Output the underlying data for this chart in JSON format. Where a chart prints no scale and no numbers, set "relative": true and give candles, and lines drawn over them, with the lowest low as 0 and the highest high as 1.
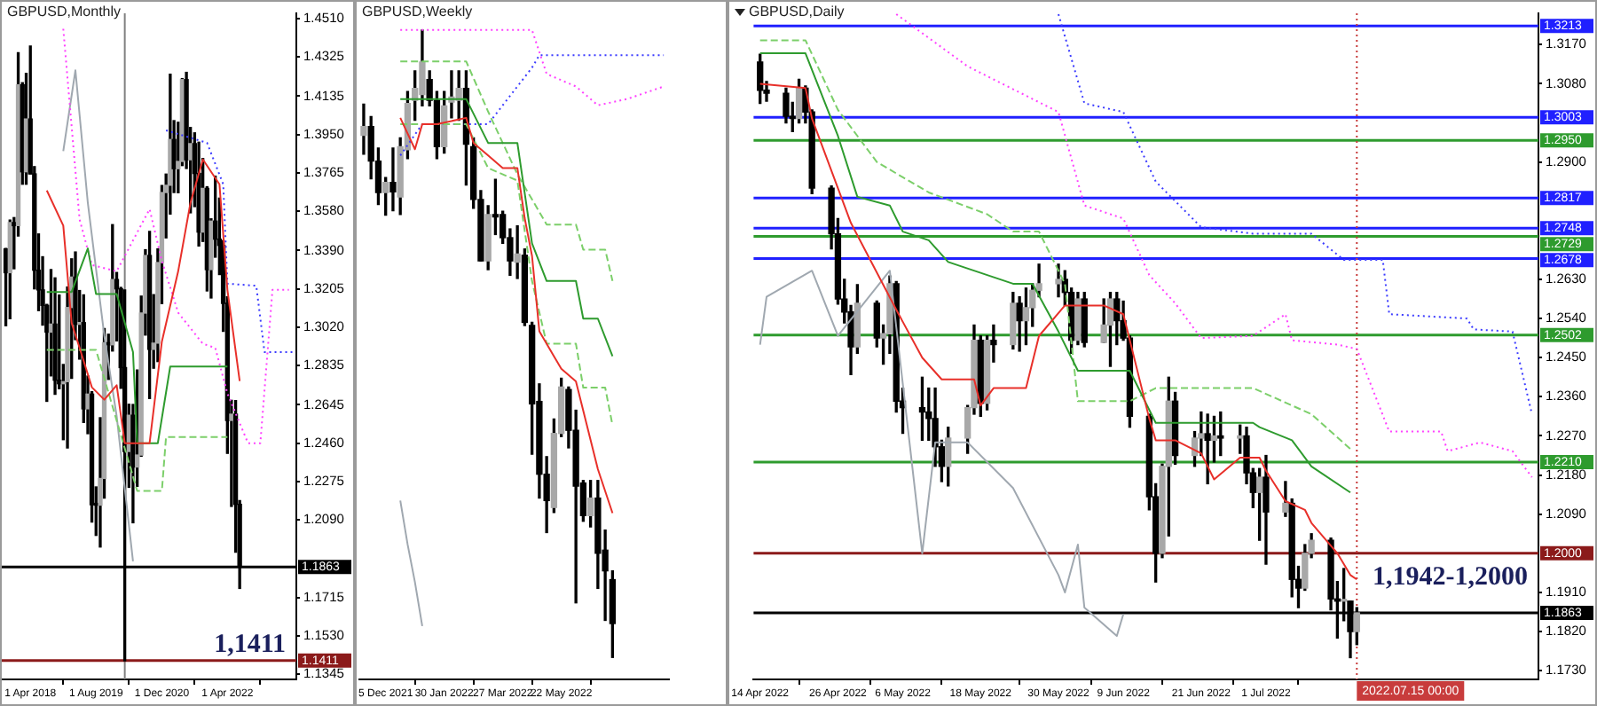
{
  "chart_data": [
    {
      "type": "candlestick",
      "title": "GBPUSD,Monthly",
      "x": [
        "2017-10",
        "2017-11",
        "2017-12",
        "2018-01",
        "2018-02",
        "2018-03",
        "2018-04",
        "2018-05",
        "2018-06",
        "2018-07",
        "2018-08",
        "2018-09",
        "2018-10",
        "2018-11",
        "2018-12",
        "2019-01",
        "2019-02",
        "2019-03",
        "2019-04",
        "2019-05",
        "2019-06",
        "2019-07",
        "2019-08",
        "2019-09",
        "2019-10",
        "2019-11",
        "2019-12",
        "2020-01",
        "2020-02",
        "2020-03",
        "2020-04",
        "2020-05",
        "2020-06",
        "2020-07",
        "2020-08",
        "2020-09",
        "2020-10",
        "2020-11",
        "2020-12",
        "2021-01",
        "2021-02",
        "2021-03",
        "2021-04",
        "2021-05",
        "2021-06",
        "2021-07",
        "2021-08",
        "2021-09",
        "2021-10",
        "2021-11",
        "2021-12",
        "2022-01",
        "2022-02",
        "2022-03",
        "2022-04",
        "2022-05",
        "2022-06",
        "2022-07"
      ],
      "ohlc": [
        [
          1.3398,
          1.34,
          1.3027,
          1.3283
        ],
        [
          1.3283,
          1.3537,
          1.3061,
          1.3525
        ],
        [
          1.3525,
          1.3549,
          1.3302,
          1.351
        ],
        [
          1.351,
          1.4345,
          1.346,
          1.419
        ],
        [
          1.419,
          1.42,
          1.371,
          1.377
        ],
        [
          1.377,
          1.4245,
          1.371,
          1.4025
        ],
        [
          1.4025,
          1.4377,
          1.376,
          1.376
        ],
        [
          1.376,
          1.3795,
          1.3205,
          1.3295
        ],
        [
          1.3295,
          1.347,
          1.31,
          1.32
        ],
        [
          1.32,
          1.336,
          1.303,
          1.3125
        ],
        [
          1.3125,
          1.313,
          1.2662,
          1.2996
        ],
        [
          1.2996,
          1.3298,
          1.2785,
          1.3035
        ],
        [
          1.3035,
          1.3258,
          1.2696,
          1.2764
        ],
        [
          1.2764,
          1.3175,
          1.2723,
          1.2747
        ],
        [
          1.2747,
          1.284,
          1.2477,
          1.2757
        ],
        [
          1.2757,
          1.3214,
          1.2437,
          1.3115
        ],
        [
          1.3115,
          1.335,
          1.2773,
          1.3262
        ],
        [
          1.3262,
          1.3383,
          1.296,
          1.3034
        ],
        [
          1.3034,
          1.3197,
          1.2866,
          1.3042
        ],
        [
          1.3042,
          1.3176,
          1.256,
          1.2626
        ],
        [
          1.2626,
          1.2784,
          1.2506,
          1.2697
        ],
        [
          1.2697,
          1.2708,
          1.208,
          1.2163
        ],
        [
          1.2163,
          1.2249,
          1.2015,
          1.2161
        ],
        [
          1.2161,
          1.2583,
          1.1959,
          1.229
        ],
        [
          1.229,
          1.3013,
          1.2195,
          1.2945
        ],
        [
          1.2945,
          1.2986,
          1.2768,
          1.2935
        ],
        [
          1.2935,
          1.3515,
          1.2905,
          1.325
        ],
        [
          1.325,
          1.3284,
          1.2954,
          1.3205
        ],
        [
          1.3205,
          1.3212,
          1.2725,
          1.2825
        ],
        [
          1.2825,
          1.32,
          1.1409,
          1.242
        ],
        [
          1.242,
          1.2648,
          1.2247,
          1.2595
        ],
        [
          1.2595,
          1.2647,
          1.2076,
          1.2345
        ],
        [
          1.2345,
          1.2813,
          1.2252,
          1.2403
        ],
        [
          1.2403,
          1.317,
          1.2397,
          1.3088
        ],
        [
          1.3088,
          1.3394,
          1.2982,
          1.3366
        ],
        [
          1.3366,
          1.3482,
          1.2676,
          1.2913
        ],
        [
          1.2913,
          1.3177,
          1.2822,
          1.2943
        ],
        [
          1.2943,
          1.3398,
          1.2854,
          1.3332
        ],
        [
          1.3332,
          1.3704,
          1.3134,
          1.367
        ],
        [
          1.367,
          1.3759,
          1.3451,
          1.3705
        ],
        [
          1.3705,
          1.4241,
          1.3566,
          1.3926
        ],
        [
          1.3926,
          1.4017,
          1.367,
          1.3785
        ],
        [
          1.3785,
          1.4009,
          1.3669,
          1.382
        ],
        [
          1.382,
          1.422,
          1.38,
          1.4215
        ],
        [
          1.4215,
          1.425,
          1.3786,
          1.3828
        ],
        [
          1.3828,
          1.3984,
          1.3572,
          1.3906
        ],
        [
          1.3906,
          1.3958,
          1.3602,
          1.3762
        ],
        [
          1.3762,
          1.3913,
          1.3412,
          1.3479
        ],
        [
          1.3479,
          1.3834,
          1.3434,
          1.369
        ],
        [
          1.369,
          1.3698,
          1.3195,
          1.3298
        ],
        [
          1.3298,
          1.3543,
          1.3161,
          1.3532
        ],
        [
          1.3532,
          1.3749,
          1.3358,
          1.3445
        ],
        [
          1.3445,
          1.3643,
          1.3274,
          1.3415
        ],
        [
          1.3415,
          1.3438,
          1.3,
          1.3135
        ],
        [
          1.3135,
          1.3167,
          1.2411,
          1.257
        ],
        [
          1.257,
          1.2667,
          1.2155,
          1.26
        ],
        [
          1.26,
          1.2666,
          1.1934,
          1.2165
        ],
        [
          1.2165,
          1.2183,
          1.1759,
          1.1863
        ]
      ],
      "series": [
        {
          "type": "line",
          "color": "#e8302a",
          "line_style": "solid",
          "x": [
            "2018-08",
            "2018-12",
            "2019-02",
            "2019-04",
            "2019-07",
            "2019-10",
            "2020-01",
            "2020-03",
            "2020-09",
            "2020-12",
            "2021-04",
            "2021-07",
            "2021-10",
            "2022-02",
            "2022-04",
            "2022-07"
          ],
          "values": [
            1.368,
            1.351,
            1.304,
            1.292,
            1.273,
            1.267,
            1.274,
            1.246,
            1.246,
            1.295,
            1.329,
            1.362,
            1.383,
            1.371,
            1.32,
            1.276
          ]
        },
        {
          "type": "line",
          "color": "#2e9b2e",
          "line_style": "solid",
          "x": [
            "2018-08",
            "2019-02",
            "2019-06",
            "2019-08",
            "2020-01",
            "2020-05",
            "2020-06",
            "2020-11",
            "2021-02",
            "2022-04"
          ],
          "values": [
            1.319,
            1.319,
            1.34,
            1.318,
            1.318,
            1.29,
            1.246,
            1.246,
            1.283,
            1.283
          ]
        },
        {
          "type": "line",
          "color": "#7ccf6a",
          "line_style": "dashed",
          "x": [
            "2018-08",
            "2019-08",
            "2020-06",
            "2020-12",
            "2021-01",
            "2022-04"
          ],
          "values": [
            1.291,
            1.291,
            1.223,
            1.223,
            1.249,
            1.249
          ]
        },
        {
          "type": "line",
          "color": "#3b3bff",
          "line_style": "dotted",
          "x": [
            "2021-01",
            "2021-11",
            "2022-03",
            "2022-04",
            "2022-11",
            "2023-01",
            "2023-08"
          ],
          "values": [
            1.397,
            1.391,
            1.371,
            1.323,
            1.322,
            1.29,
            1.29
          ]
        },
        {
          "type": "line",
          "color": "#ff40ff",
          "line_style": "dotted",
          "x": [
            "2018-12",
            "2019-04",
            "2019-07",
            "2020-01",
            "2020-09",
            "2020-12",
            "2021-04",
            "2021-10",
            "2022-01",
            "2022-04",
            "2022-09",
            "2022-12",
            "2023-03",
            "2023-07"
          ],
          "values": [
            1.446,
            1.354,
            1.332,
            1.329,
            1.359,
            1.334,
            1.309,
            1.294,
            1.292,
            1.27,
            1.246,
            1.246,
            1.32,
            1.32
          ]
        },
        {
          "type": "line",
          "color": "#a0a8b0",
          "line_style": "solid",
          "x": [
            "2018-12",
            "2019-03",
            "2019-06",
            "2019-10",
            "2020-01",
            "2020-05"
          ],
          "values": [
            1.387,
            1.426,
            1.362,
            1.298,
            1.259,
            1.189
          ]
        }
      ],
      "xlim": [
        "2017-09-01",
        "2023-08-25"
      ],
      "xticks": [
        {
          "value": "2018-04-01",
          "label": "1 Apr 2018"
        },
        {
          "value": "2019-08-01",
          "label": "1 Aug 2019"
        },
        {
          "value": "2020-12-01",
          "label": "1 Dec 2020"
        },
        {
          "value": "2022-04-01",
          "label": "1 Apr 2022"
        }
      ],
      "ylim": [
        1.132,
        1.4535
      ],
      "yticks": [
        {
          "value": 1.451,
          "label": "1.4510"
        },
        1.4325,
        1.4135,
        {
          "value": 1.395,
          "label": "1.3950"
        },
        1.3765,
        {
          "value": 1.358,
          "label": "1.3580"
        },
        {
          "value": 1.339,
          "label": "1.3390"
        },
        1.3205,
        {
          "value": 1.302,
          "label": "1.3020"
        },
        1.2835,
        1.2645,
        {
          "value": 1.246,
          "label": "1.2460"
        },
        1.2275,
        {
          "value": 1.209,
          "label": "1.2090"
        },
        1.1715,
        {
          "value": 1.153,
          "label": "1.1530"
        },
        1.1345
      ],
      "ref_lines": [
        {
          "axis": "x",
          "value": "2020-03-01",
          "color": "#808080"
        },
        {
          "axis": "y",
          "value": 1.1411,
          "label": "1.1411",
          "color": "#8b1a1a"
        },
        {
          "axis": "y",
          "value": 1.1863,
          "label": "1.1863",
          "color": "#000000"
        }
      ],
      "annotations": [
        "1,1411"
      ]
    },
    {
      "type": "candlestick",
      "title": "GBPUSD,Weekly",
      "relative": true,
      "tick_labels": "x",
      "x": [
        "2021-11-14",
        "2021-11-21",
        "2021-11-28",
        "2021-12-05",
        "2021-12-12",
        "2021-12-19",
        "2021-12-26",
        "2022-01-02",
        "2022-01-09",
        "2022-01-16",
        "2022-01-23",
        "2022-01-30",
        "2022-02-06",
        "2022-02-13",
        "2022-02-20",
        "2022-02-27",
        "2022-03-06",
        "2022-03-13",
        "2022-03-20",
        "2022-03-27",
        "2022-04-03",
        "2022-04-10",
        "2022-04-17",
        "2022-04-24",
        "2022-05-01",
        "2022-05-08",
        "2022-05-15",
        "2022-05-22",
        "2022-05-29",
        "2022-06-05",
        "2022-06-12",
        "2022-06-19",
        "2022-06-26",
        "2022-07-03",
        "2022-07-10"
      ],
      "ohlc": [
        [
          0.832,
          0.882,
          0.802,
          0.846
        ],
        [
          0.846,
          0.862,
          0.763,
          0.791
        ],
        [
          0.791,
          0.812,
          0.722,
          0.741
        ],
        [
          0.741,
          0.765,
          0.705,
          0.757
        ],
        [
          0.757,
          0.812,
          0.712,
          0.742
        ],
        [
          0.734,
          0.828,
          0.706,
          0.814
        ],
        [
          0.809,
          0.902,
          0.795,
          0.883
        ],
        [
          0.888,
          0.935,
          0.856,
          0.907
        ],
        [
          0.897,
          1,
          0.879,
          0.949
        ],
        [
          0.921,
          0.935,
          0.879,
          0.888
        ],
        [
          0.888,
          0.902,
          0.795,
          0.814
        ],
        [
          0.814,
          0.902,
          0.804,
          0.879
        ],
        [
          0.885,
          0.935,
          0.86,
          0.893
        ],
        [
          0.888,
          0.935,
          0.856,
          0.907
        ],
        [
          0.907,
          0.935,
          0.753,
          0.818
        ],
        [
          0.814,
          0.828,
          0.716,
          0.73
        ],
        [
          0.73,
          0.744,
          0.632,
          0.632
        ],
        [
          0.632,
          0.72,
          0.618,
          0.706
        ],
        [
          0.706,
          0.762,
          0.674,
          0.702
        ],
        [
          0.706,
          0.711,
          0.66,
          0.669
        ],
        [
          0.669,
          0.683,
          0.609,
          0.632
        ],
        [
          0.63,
          0.688,
          0.604,
          0.643
        ],
        [
          0.641,
          0.651,
          0.529,
          0.534
        ],
        [
          0.529,
          0.534,
          0.324,
          0.404
        ],
        [
          0.408,
          0.436,
          0.254,
          0.292
        ],
        [
          0.292,
          0.32,
          0.199,
          0.25
        ],
        [
          0.239,
          0.38,
          0.231,
          0.357
        ],
        [
          0.357,
          0.445,
          0.352,
          0.431
        ],
        [
          0.427,
          0.431,
          0.334,
          0.362
        ],
        [
          0.362,
          0.394,
          0.087,
          0.273
        ],
        [
          0.278,
          0.282,
          0.217,
          0.226
        ],
        [
          0.226,
          0.282,
          0.208,
          0.254
        ],
        [
          0.254,
          0.282,
          0.11,
          0.166
        ],
        [
          0.171,
          0.203,
          0.059,
          0.138
        ],
        [
          0.124,
          0.138,
          0,
          0.054
        ]
      ],
      "series": [
        {
          "type": "line",
          "color": "#e8302a",
          "line_style": "solid",
          "x": [
            "2021-12-19",
            "2022-01-02",
            "2022-01-09",
            "2022-01-23",
            "2022-02-20",
            "2022-02-27",
            "2022-03-13",
            "2022-03-27",
            "2022-04-10",
            "2022-04-17",
            "2022-04-24",
            "2022-05-01",
            "2022-05-15",
            "2022-05-22",
            "2022-06-05",
            "2022-06-26",
            "2022-07-10"
          ],
          "values": [
            0.86,
            0.81,
            0.85,
            0.85,
            0.86,
            0.82,
            0.8,
            0.78,
            0.78,
            0.7,
            0.64,
            0.52,
            0.48,
            0.46,
            0.44,
            0.3,
            0.23
          ]
        },
        {
          "type": "line",
          "color": "#2e9b2e",
          "line_style": "solid",
          "x": [
            "2021-12-19",
            "2022-02-20",
            "2022-03-13",
            "2022-04-10",
            "2022-04-24",
            "2022-05-08",
            "2022-06-05",
            "2022-06-12",
            "2022-06-26",
            "2022-07-10"
          ],
          "values": [
            0.89,
            0.89,
            0.82,
            0.82,
            0.66,
            0.6,
            0.6,
            0.54,
            0.54,
            0.48
          ]
        },
        {
          "type": "line",
          "color": "#7ccf6a",
          "line_style": "dashed",
          "x": [
            "2021-12-19",
            "2022-02-20",
            "2022-03-13",
            "2022-04-10",
            "2022-05-08",
            "2022-06-05",
            "2022-06-12",
            "2022-07-03",
            "2022-07-10"
          ],
          "values": [
            0.95,
            0.95,
            0.87,
            0.77,
            0.69,
            0.69,
            0.65,
            0.65,
            0.6
          ]
        },
        {
          "type": "line",
          "color": "#7ccf6a",
          "line_style": "dashed",
          "x": [
            "2021-12-19",
            "2022-02-20",
            "2022-03-13",
            "2022-04-10",
            "2022-04-24",
            "2022-05-08",
            "2022-06-05",
            "2022-06-12",
            "2022-07-03",
            "2022-07-10"
          ],
          "values": [
            0.85,
            0.85,
            0.78,
            0.76,
            0.6,
            0.5,
            0.5,
            0.43,
            0.43,
            0.37
          ]
        },
        {
          "type": "line",
          "color": "#3b3bff",
          "line_style": "dotted",
          "x": [
            "2021-12-19",
            "2022-01-09",
            "2022-03-13",
            "2022-03-27",
            "2022-04-24",
            "2022-05-01",
            "2022-08-28"
          ],
          "values": [
            0.8,
            0.85,
            0.85,
            0.88,
            0.94,
            0.96,
            0.96
          ]
        },
        {
          "type": "line",
          "color": "#ff40ff",
          "line_style": "dotted",
          "x": [
            "2021-12-19",
            "2022-03-13",
            "2022-04-24",
            "2022-05-08",
            "2022-06-05",
            "2022-06-26",
            "2022-07-24",
            "2022-08-28"
          ],
          "values": [
            1,
            1,
            1,
            0.93,
            0.91,
            0.88,
            0.89,
            0.91
          ]
        },
        {
          "type": "line",
          "color": "#a0a8b0",
          "line_style": "solid",
          "x": [
            "2021-12-19",
            "2021-12-26",
            "2022-01-02",
            "2022-01-09"
          ],
          "values": [
            0.25,
            0.18,
            0.12,
            0.05
          ]
        }
      ],
      "xlim": [
        "2021-11-10",
        "2022-09-02"
      ],
      "xticks": [
        {
          "value": "2021-12-05",
          "label": "5 Dec 2021"
        },
        {
          "value": "2022-01-30",
          "label": "30 Jan 2022"
        },
        {
          "value": "2022-03-27",
          "label": "27 Mar 2022"
        },
        {
          "value": "2022-05-22",
          "label": "22 May 2022"
        }
      ]
    },
    {
      "type": "candlestick",
      "title": "GBPUSD,Daily",
      "x": [
        "2022-04-14",
        "2022-04-15",
        "2022-04-18",
        "2022-04-19",
        "2022-04-20",
        "2022-04-21",
        "2022-04-22",
        "2022-04-25",
        "2022-04-26",
        "2022-04-27",
        "2022-04-28",
        "2022-04-29",
        "2022-05-02",
        "2022-05-03",
        "2022-05-04",
        "2022-05-05",
        "2022-05-06",
        "2022-05-09",
        "2022-05-10",
        "2022-05-11",
        "2022-05-12",
        "2022-05-13",
        "2022-05-16",
        "2022-05-17",
        "2022-05-18",
        "2022-05-19",
        "2022-05-20",
        "2022-05-23",
        "2022-05-24",
        "2022-05-25",
        "2022-05-26",
        "2022-05-27",
        "2022-05-30",
        "2022-05-31",
        "2022-06-01",
        "2022-06-02",
        "2022-06-03",
        "2022-06-06",
        "2022-06-07",
        "2022-06-08",
        "2022-06-09",
        "2022-06-10",
        "2022-06-13",
        "2022-06-14",
        "2022-06-15",
        "2022-06-16",
        "2022-06-17",
        "2022-06-20",
        "2022-06-21",
        "2022-06-22",
        "2022-06-23",
        "2022-06-24",
        "2022-06-27",
        "2022-06-28",
        "2022-06-29",
        "2022-06-30",
        "2022-07-01",
        "2022-07-04",
        "2022-07-05",
        "2022-07-06",
        "2022-07-07",
        "2022-07-08",
        "2022-07-11",
        "2022-07-12",
        "2022-07-13",
        "2022-07-14",
        "2022-07-15"
      ],
      "ohlc": [
        [
          1.313,
          1.3148,
          1.3035,
          1.3065
        ],
        [
          1.3065,
          1.3085,
          1.304,
          1.3058
        ],
        [
          1.3058,
          1.307,
          1.299,
          1.3005
        ],
        [
          1.3005,
          1.3037,
          1.297,
          1.3
        ],
        [
          1.3,
          1.309,
          1.299,
          1.307
        ],
        [
          1.307,
          1.3075,
          1.299,
          1.3015
        ],
        [
          1.3015,
          1.302,
          1.2827,
          1.284
        ],
        [
          1.284,
          1.2845,
          1.27,
          1.2735
        ],
        [
          1.2735,
          1.277,
          1.2573,
          1.2585
        ],
        [
          1.2585,
          1.263,
          1.253,
          1.2555
        ],
        [
          1.2555,
          1.257,
          1.2411,
          1.2475
        ],
        [
          1.2475,
          1.2618,
          1.246,
          1.2575
        ],
        [
          1.2575,
          1.258,
          1.2475,
          1.2495
        ],
        [
          1.2495,
          1.2525,
          1.2435,
          1.2505
        ],
        [
          1.2505,
          1.2638,
          1.246,
          1.262
        ],
        [
          1.262,
          1.2625,
          1.2325,
          1.235
        ],
        [
          1.235,
          1.238,
          1.2276,
          1.2335
        ],
        [
          1.2335,
          1.2405,
          1.226,
          1.2325
        ],
        [
          1.2325,
          1.238,
          1.226,
          1.231
        ],
        [
          1.231,
          1.238,
          1.22,
          1.2245
        ],
        [
          1.2245,
          1.226,
          1.2165,
          1.22
        ],
        [
          1.22,
          1.229,
          1.2155,
          1.2265
        ],
        [
          1.2265,
          1.234,
          1.223,
          1.2335
        ],
        [
          1.2335,
          1.2525,
          1.232,
          1.249
        ],
        [
          1.249,
          1.25,
          1.2315,
          1.2345
        ],
        [
          1.2345,
          1.25,
          1.233,
          1.249
        ],
        [
          1.249,
          1.2525,
          1.244,
          1.248
        ],
        [
          1.248,
          1.26,
          1.247,
          1.2575
        ],
        [
          1.2575,
          1.259,
          1.2465,
          1.2535
        ],
        [
          1.2535,
          1.261,
          1.248,
          1.2565
        ],
        [
          1.2565,
          1.262,
          1.2522,
          1.2605
        ],
        [
          1.2605,
          1.2665,
          1.259,
          1.262
        ],
        [
          1.262,
          1.2665,
          1.259,
          1.263
        ],
        [
          1.263,
          1.265,
          1.257,
          1.26
        ],
        [
          1.26,
          1.261,
          1.246,
          1.249
        ],
        [
          1.249,
          1.26,
          1.248,
          1.2585
        ],
        [
          1.2585,
          1.26,
          1.2475,
          1.2485
        ],
        [
          1.2485,
          1.2585,
          1.2485,
          1.2525
        ],
        [
          1.2525,
          1.26,
          1.243,
          1.2585
        ],
        [
          1.2585,
          1.26,
          1.248,
          1.2535
        ],
        [
          1.2535,
          1.258,
          1.249,
          1.2495
        ],
        [
          1.2495,
          1.25,
          1.229,
          1.2315
        ],
        [
          1.2315,
          1.232,
          1.21,
          1.213
        ],
        [
          1.213,
          1.216,
          1.1934,
          1.2
        ],
        [
          1.2,
          1.2205,
          1.199,
          1.22
        ],
        [
          1.22,
          1.2405,
          1.204,
          1.235
        ],
        [
          1.235,
          1.237,
          1.2205,
          1.2225
        ],
        [
          1.2225,
          1.228,
          1.22,
          1.2265
        ],
        [
          1.2265,
          1.2325,
          1.2225,
          1.2275
        ],
        [
          1.2275,
          1.232,
          1.216,
          1.226
        ],
        [
          1.226,
          1.2315,
          1.221,
          1.227
        ],
        [
          1.227,
          1.2325,
          1.2225,
          1.2265
        ],
        [
          1.2265,
          1.2295,
          1.223,
          1.227
        ],
        [
          1.227,
          1.229,
          1.216,
          1.2185
        ],
        [
          1.2185,
          1.2195,
          1.2105,
          1.214
        ],
        [
          1.214,
          1.2195,
          1.203,
          1.2175
        ],
        [
          1.2175,
          1.2225,
          1.1975,
          1.2095
        ],
        [
          1.2095,
          1.2165,
          1.2085,
          1.2115
        ],
        [
          1.2115,
          1.2125,
          1.19,
          1.194
        ],
        [
          1.194,
          1.197,
          1.1875,
          1.192
        ],
        [
          1.192,
          1.202,
          1.1915,
          1.2
        ],
        [
          1.2,
          1.2045,
          1.199,
          1.203
        ],
        [
          1.203,
          1.2035,
          1.187,
          1.1895
        ],
        [
          1.1895,
          1.1935,
          1.1805,
          1.189
        ],
        [
          1.189,
          1.1965,
          1.1845,
          1.189
        ],
        [
          1.189,
          1.189,
          1.176,
          1.182
        ],
        [
          1.182,
          1.1875,
          1.179,
          1.1863
        ]
      ],
      "series": [
        {
          "type": "line",
          "color": "#e8302a",
          "line_style": "solid",
          "x": [
            "2022-04-14",
            "2022-04-21",
            "2022-04-22",
            "2022-04-28",
            "2022-05-05",
            "2022-05-09",
            "2022-05-12",
            "2022-05-17",
            "2022-05-18",
            "2022-05-20",
            "2022-05-25",
            "2022-05-27",
            "2022-05-31",
            "2022-06-06",
            "2022-06-09",
            "2022-06-13",
            "2022-06-14",
            "2022-06-17",
            "2022-06-21",
            "2022-06-23",
            "2022-06-27",
            "2022-06-30",
            "2022-07-01",
            "2022-07-04",
            "2022-07-07",
            "2022-07-08",
            "2022-07-12",
            "2022-07-14",
            "2022-07-15"
          ],
          "values": [
            1.308,
            1.307,
            1.3,
            1.276,
            1.256,
            1.245,
            1.24,
            1.24,
            1.234,
            1.238,
            1.238,
            1.25,
            1.257,
            1.257,
            1.255,
            1.231,
            1.226,
            1.226,
            1.223,
            1.217,
            1.222,
            1.222,
            1.219,
            1.212,
            1.21,
            1.207,
            1.2,
            1.195,
            1.194
          ]
        },
        {
          "type": "line",
          "color": "#2e9b2e",
          "line_style": "solid",
          "x": [
            "2022-04-14",
            "2022-04-21",
            "2022-04-26",
            "2022-04-29",
            "2022-05-04",
            "2022-05-06",
            "2022-05-10",
            "2022-05-13",
            "2022-05-23",
            "2022-05-26",
            "2022-05-30",
            "2022-06-02",
            "2022-06-10",
            "2022-06-14",
            "2022-06-29",
            "2022-06-30",
            "2022-07-05",
            "2022-07-08",
            "2022-07-14"
          ],
          "values": [
            1.315,
            1.315,
            1.296,
            1.282,
            1.28,
            1.274,
            1.272,
            1.267,
            1.262,
            1.262,
            1.251,
            1.242,
            1.242,
            1.23,
            1.23,
            1.229,
            1.226,
            1.22,
            1.214
          ]
        },
        {
          "type": "line",
          "color": "#7ccf6a",
          "line_style": "dashed",
          "x": [
            "2022-04-14",
            "2022-04-21",
            "2022-04-26",
            "2022-05-02",
            "2022-05-10",
            "2022-05-19",
            "2022-05-23",
            "2022-05-27",
            "2022-05-31",
            "2022-06-02",
            "2022-06-10",
            "2022-06-14",
            "2022-06-29",
            "2022-07-05",
            "2022-07-08",
            "2022-07-14"
          ],
          "values": [
            1.318,
            1.318,
            1.302,
            1.29,
            1.283,
            1.278,
            1.274,
            1.274,
            1.262,
            1.235,
            1.235,
            1.238,
            1.238,
            1.234,
            1.232,
            1.224
          ]
        },
        {
          "type": "line",
          "color": "#ff40ff",
          "line_style": "dotted",
          "x": [
            "2022-05-05",
            "2022-05-16",
            "2022-05-30",
            "2022-06-03",
            "2022-06-09",
            "2022-06-13",
            "2022-06-17",
            "2022-06-21",
            "2022-06-29",
            "2022-07-04",
            "2022-07-05",
            "2022-07-12",
            "2022-07-15",
            "2022-07-20",
            "2022-07-28",
            "2022-07-29",
            "2022-08-03",
            "2022-08-08",
            "2022-08-11"
          ],
          "values": [
            1.324,
            1.312,
            1.3015,
            1.28,
            1.277,
            1.264,
            1.2575,
            1.2495,
            1.25,
            1.255,
            1.249,
            1.248,
            1.247,
            1.228,
            1.228,
            1.2235,
            1.2255,
            1.2235,
            1.2175
          ]
        },
        {
          "type": "line",
          "color": "#3b3bff",
          "line_style": "dotted",
          "x": [
            "2022-05-30",
            "2022-06-03",
            "2022-06-09",
            "2022-06-14",
            "2022-06-21",
            "2022-06-29",
            "2022-07-08",
            "2022-07-13",
            "2022-07-19",
            "2022-07-20",
            "2022-08-01",
            "2022-08-02",
            "2022-08-08",
            "2022-08-11"
          ],
          "values": [
            1.324,
            1.3035,
            1.3015,
            1.2855,
            1.275,
            1.2735,
            1.2735,
            1.2675,
            1.2675,
            1.255,
            1.254,
            1.2515,
            1.251,
            1.232
          ]
        },
        {
          "type": "line",
          "color": "#a0a8b0",
          "line_style": "solid",
          "x": [
            "2022-04-14",
            "2022-04-15",
            "2022-04-22",
            "2022-04-26",
            "2022-05-04",
            "2022-05-09",
            "2022-05-11",
            "2022-05-16",
            "2022-05-23",
            "2022-05-30",
            "2022-05-31",
            "2022-06-02",
            "2022-06-03",
            "2022-06-08",
            "2022-06-09"
          ],
          "values": [
            1.248,
            1.259,
            1.265,
            1.25,
            1.265,
            1.2,
            1.2255,
            1.2255,
            1.215,
            1.195,
            1.191,
            1.202,
            1.1875,
            1.181,
            1.186
          ]
        }
      ],
      "xlim": [
        "2022-04-13",
        "2022-08-12"
      ],
      "xticks": [
        {
          "value": "2022-04-14",
          "label": "14 Apr 2022"
        },
        {
          "value": "2022-04-26",
          "label": "26 Apr 2022"
        },
        {
          "value": "2022-05-06",
          "label": "6 May 2022"
        },
        {
          "value": "2022-05-18",
          "label": "18 May 2022"
        },
        {
          "value": "2022-05-30",
          "label": "30 May 2022"
        },
        {
          "value": "2022-06-09",
          "label": "9 Jun 2022"
        },
        {
          "value": "2022-06-21",
          "label": "21 Jun 2022"
        },
        {
          "value": "2022-07-01",
          "label": "1 Jul 2022"
        }
      ],
      "ylim": [
        1.171,
        1.3242
      ],
      "yticks": [
        {
          "value": 1.317,
          "label": "1.3170"
        },
        {
          "value": 1.308,
          "label": "1.3080"
        },
        {
          "value": 1.29,
          "label": "1.2900"
        },
        {
          "value": 1.263,
          "label": "1.2630"
        },
        {
          "value": 1.254,
          "label": "1.2540"
        },
        {
          "value": 1.245,
          "label": "1.2450"
        },
        {
          "value": 1.236,
          "label": "1.2360"
        },
        {
          "value": 1.227,
          "label": "1.2270"
        },
        {
          "value": 1.218,
          "label": "1.2180"
        },
        {
          "value": 1.209,
          "label": "1.2090"
        },
        {
          "value": 1.191,
          "label": "1.1910"
        },
        {
          "value": 1.182,
          "label": "1.1820"
        },
        {
          "value": 1.173,
          "label": "1.1730"
        }
      ],
      "ref_lines": [
        {
          "axis": "y",
          "value": 1.3213,
          "label": "1.3213",
          "color": "#2020ff"
        },
        {
          "axis": "y",
          "value": 1.3003,
          "label": "1.3003",
          "color": "#2020ff"
        },
        {
          "axis": "y",
          "value": 1.295,
          "label": "1.2950",
          "color": "#2e9b2e"
        },
        {
          "axis": "y",
          "value": 1.2817,
          "label": "1.2817",
          "color": "#2020ff"
        },
        {
          "axis": "y",
          "value": 1.2748,
          "label": "1.2748",
          "color": "#2020ff"
        },
        {
          "axis": "y",
          "value": 1.2729,
          "label": "1.2729",
          "color": "#2e9b2e"
        },
        {
          "axis": "y",
          "value": 1.2678,
          "label": "1.2678",
          "color": "#2020ff"
        },
        {
          "axis": "y",
          "value": 1.2502,
          "label": "1.2502",
          "color": "#2e9b2e"
        },
        {
          "axis": "y",
          "value": 1.221,
          "label": "1.2210",
          "color": "#2e9b2e"
        },
        {
          "axis": "y",
          "value": 1.2,
          "label": "1.2000",
          "color": "#8b1a1a"
        },
        {
          "axis": "y",
          "value": 1.1863,
          "label": "1.1863",
          "color": "#000000"
        },
        {
          "axis": "x",
          "value": "2022-07-15",
          "label": "2022.07.15 00:00",
          "color": "#c83c3c",
          "line_style": "dotted"
        }
      ],
      "annotations": [
        "1,1942-1,2000"
      ]
    }
  ]
}
